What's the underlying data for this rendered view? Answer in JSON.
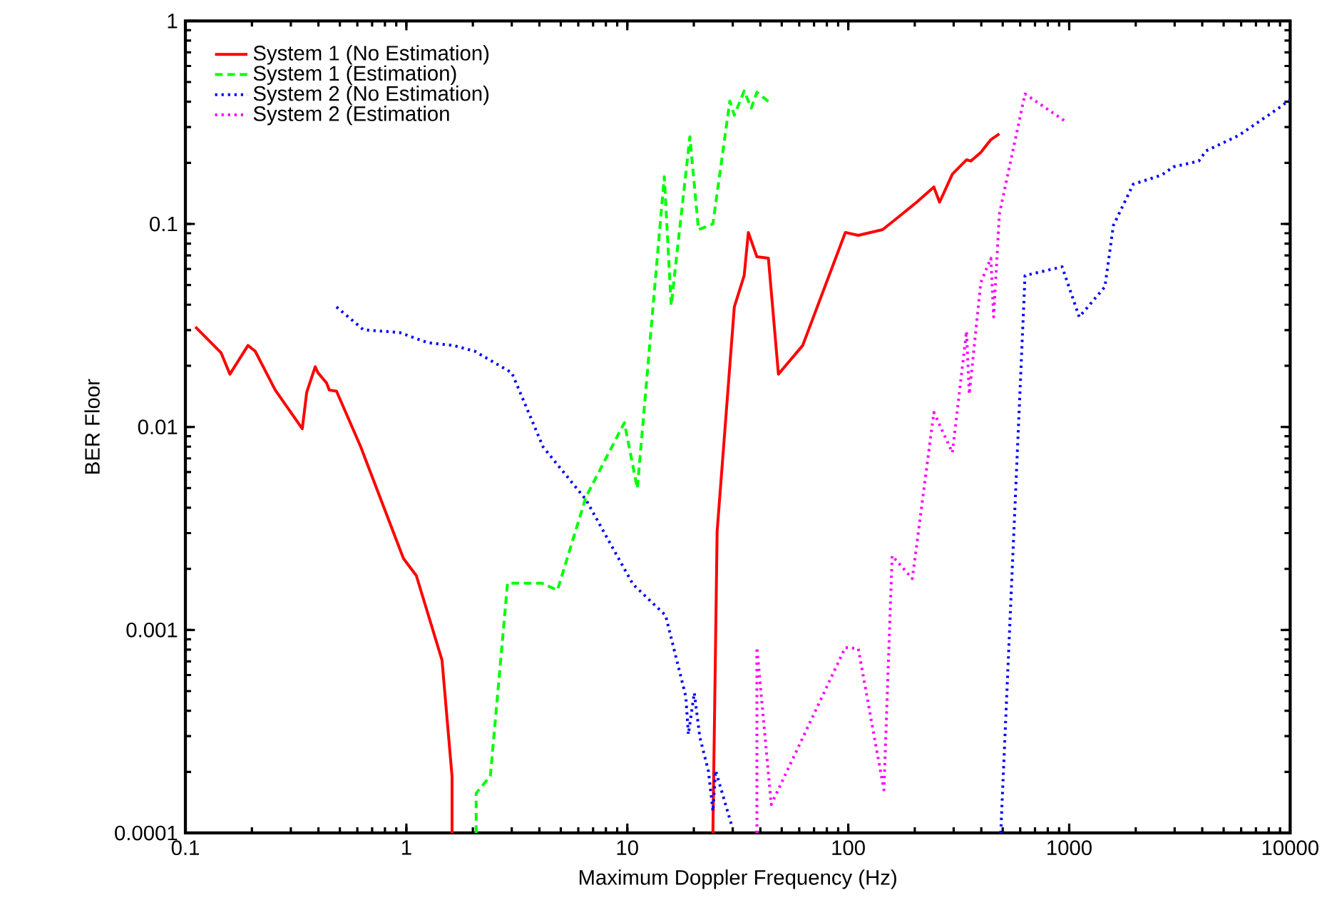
{
  "chart_data": {
    "type": "line",
    "xlabel": "Maximum Doppler Frequency (Hz)",
    "ylabel": "BER Floor",
    "log": "xy",
    "grid": false,
    "legend": "top left",
    "marker": "none",
    "xlim": [
      0.1,
      10000
    ],
    "ylim": [
      0.0001,
      1
    ],
    "xticks": [
      0.1,
      1,
      10,
      100,
      1000,
      10000
    ],
    "yticks": [
      0.0001,
      0.001,
      0.01,
      0.1,
      1
    ],
    "series": [
      {
        "name": "System 1 (No Estimation)",
        "color": "#ff0000",
        "line_style": "solid",
        "x": [
          0.111,
          0.145,
          0.159,
          0.192,
          0.207,
          0.255,
          0.338,
          0.354,
          0.387,
          0.398,
          0.435,
          0.448,
          0.483,
          0.622,
          0.97,
          1.11,
          1.45,
          1.61,
          1.61,
          20,
          24.4,
          25.5,
          30.5,
          33.8,
          35.3,
          38.6,
          43.5,
          48.3,
          62.2,
          97,
          111,
          143,
          163,
          204,
          244,
          259,
          296,
          343,
          359,
          398,
          442,
          483
        ],
        "values": [
          0.0311,
          0.0232,
          0.0182,
          0.0252,
          0.0236,
          0.0152,
          0.0098,
          0.0148,
          0.0198,
          0.0185,
          0.0165,
          0.0152,
          0.015,
          0.00797,
          0.00225,
          0.00185,
          0.00071,
          0.00019,
          0.0001,
          null,
          0.0001,
          0.00306,
          0.039,
          0.0557,
          0.0908,
          0.0689,
          0.0678,
          0.0182,
          0.0252,
          0.0908,
          0.0879,
          0.0937,
          0.105,
          0.128,
          0.152,
          0.128,
          0.176,
          0.207,
          0.204,
          0.225,
          0.26,
          0.278
        ]
      },
      {
        "name": "System 1 (Estimation)",
        "color": "#00ff00",
        "line_style": "dashed",
        "x": [
          2.07,
          2.07,
          2.4,
          2.87,
          4.1,
          4.83,
          6.5,
          9.7,
          11.1,
          14.7,
          15.8,
          19.2,
          21,
          24.4,
          29.1,
          30.5,
          33.8,
          36.4,
          38.6,
          44.8
        ],
        "values": [
          0.0001,
          0.000157,
          0.000191,
          0.0017,
          0.0017,
          0.00157,
          0.00452,
          0.0105,
          0.00498,
          0.171,
          0.0397,
          0.269,
          0.0937,
          0.1,
          0.403,
          0.343,
          0.452,
          0.372,
          0.445,
          0.391
        ]
      },
      {
        "name": "System 2 (No Estimation)",
        "color": "#0000ff",
        "line_style": "dotted",
        "x": [
          0.483,
          0.64,
          0.93,
          1.25,
          1.63,
          2.04,
          3.0,
          4.16,
          6.5,
          10.6,
          14.9,
          18.4,
          18.9,
          20.1,
          21.3,
          23.3,
          24.4,
          25.1,
          29.6,
          100,
          490,
          631,
          929,
          1110,
          1450,
          1585,
          1950,
          2620,
          2960,
          3860,
          4160,
          5860,
          8870,
          10000
        ],
        "values": [
          0.039,
          0.0301,
          0.0292,
          0.026,
          0.0252,
          0.0236,
          0.0185,
          0.00797,
          0.00438,
          0.00168,
          0.00118,
          0.00047,
          0.000306,
          0.00049,
          0.000296,
          0.000201,
          0.000128,
          0.000203,
          0.00011,
          null,
          0.0001,
          0.0557,
          0.0615,
          0.0348,
          0.049,
          0.0984,
          0.157,
          0.174,
          0.191,
          0.204,
          0.229,
          0.273,
          0.372,
          0.41
        ]
      },
      {
        "name": "System 2 (Estimation",
        "color": "#ff00ff",
        "line_style": "dotted",
        "x": [
          38.6,
          38.6,
          44.8,
          97,
          111,
          145,
          158,
          195,
          244,
          296,
          343,
          353,
          398,
          442,
          455,
          483,
          631,
          957
        ],
        "values": [
          0.0001,
          0.00082,
          0.000138,
          0.00082,
          0.00081,
          0.000163,
          0.00232,
          0.00179,
          0.0118,
          0.00747,
          0.0296,
          0.0145,
          0.0514,
          0.0678,
          0.0348,
          0.112,
          0.437,
          0.321
        ]
      }
    ]
  }
}
